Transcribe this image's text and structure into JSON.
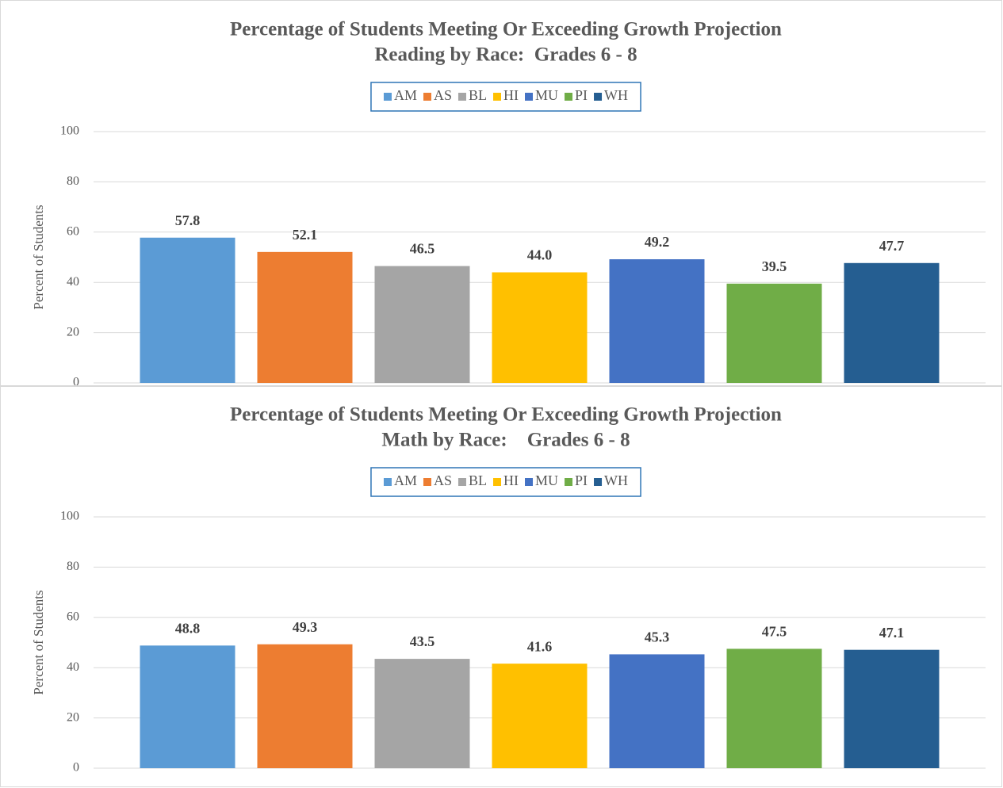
{
  "chart_data": [
    {
      "type": "bar",
      "title": "Percentage of Students Meeting Or Exceeding Growth Projection",
      "subtitle": "Reading by Race:  Grades 6 - 8",
      "ylabel": "Percent of Students",
      "ylim": [
        0,
        100
      ],
      "yticks": [
        0,
        20,
        40,
        60,
        80,
        100
      ],
      "grid": true,
      "legend": "top",
      "series": [
        {
          "name": "AM",
          "color": "#5b9bd5",
          "values": [
            57.8
          ]
        },
        {
          "name": "AS",
          "color": "#ed7d31",
          "values": [
            52.1
          ]
        },
        {
          "name": "BL",
          "color": "#a5a5a5",
          "values": [
            46.5
          ]
        },
        {
          "name": "HI",
          "color": "#ffc000",
          "values": [
            44.0
          ],
          "value_labels": [
            "44.0"
          ]
        },
        {
          "name": "MU",
          "color": "#4472c4",
          "values": [
            49.2
          ]
        },
        {
          "name": "PI",
          "color": "#70ad47",
          "values": [
            39.5
          ]
        },
        {
          "name": "WH",
          "color": "#255e91",
          "values": [
            47.7
          ]
        }
      ]
    },
    {
      "type": "bar",
      "title": "Percentage of Students Meeting Or Exceeding Growth Projection",
      "subtitle": "Math by Race:    Grades 6 - 8",
      "ylabel": "Percent of Students",
      "ylim": [
        0,
        100
      ],
      "yticks": [
        0,
        20,
        40,
        60,
        80,
        100
      ],
      "grid": true,
      "legend": "top",
      "series": [
        {
          "name": "AM",
          "color": "#5b9bd5",
          "values": [
            48.8
          ]
        },
        {
          "name": "AS",
          "color": "#ed7d31",
          "values": [
            49.3
          ]
        },
        {
          "name": "BL",
          "color": "#a5a5a5",
          "values": [
            43.5
          ]
        },
        {
          "name": "HI",
          "color": "#ffc000",
          "values": [
            41.6
          ]
        },
        {
          "name": "MU",
          "color": "#4472c4",
          "values": [
            45.3
          ]
        },
        {
          "name": "PI",
          "color": "#70ad47",
          "values": [
            47.5
          ]
        },
        {
          "name": "WH",
          "color": "#255e91",
          "values": [
            47.1
          ]
        }
      ]
    }
  ]
}
